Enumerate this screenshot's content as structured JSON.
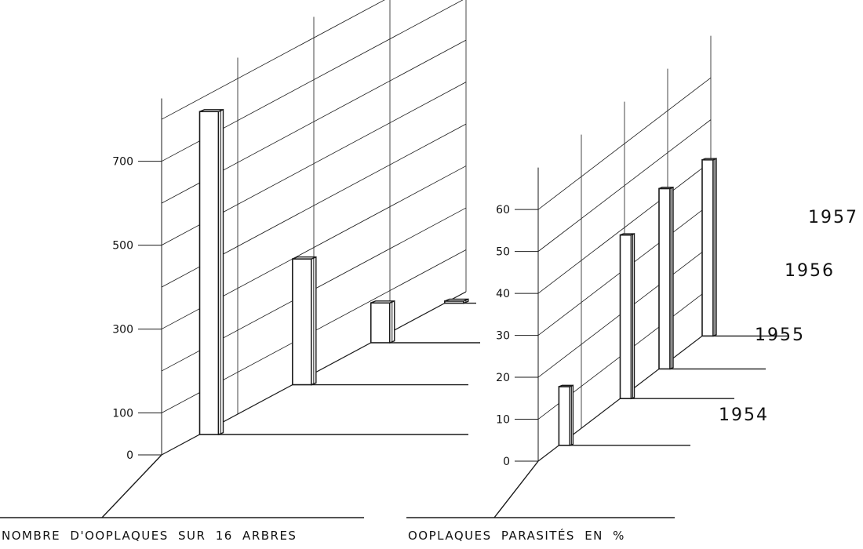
{
  "chart_data": [
    {
      "type": "bar",
      "style": "3d perspective, black and white line drawing",
      "xlabel": "NOMBRE D'OOPLAQUES SUR 16 ARBRES",
      "categories": [
        "1954",
        "1955",
        "1956",
        "1957"
      ],
      "values": [
        770,
        300,
        95,
        5
      ],
      "yticks": [
        0,
        100,
        300,
        500,
        700
      ],
      "ylim": [
        0,
        850
      ],
      "grid": true
    },
    {
      "type": "bar",
      "style": "3d perspective, black and white line drawing",
      "xlabel": "OOPLAQUES PARASITÉS EN %",
      "categories": [
        "1954",
        "1955",
        "1956",
        "1957"
      ],
      "values": [
        14,
        39,
        43,
        42
      ],
      "yticks": [
        0,
        10,
        20,
        30,
        40,
        50,
        60
      ],
      "ylim": [
        0,
        70
      ],
      "grid": true
    }
  ],
  "year_labels": [
    "1957",
    "1956",
    "1955",
    "1954"
  ]
}
